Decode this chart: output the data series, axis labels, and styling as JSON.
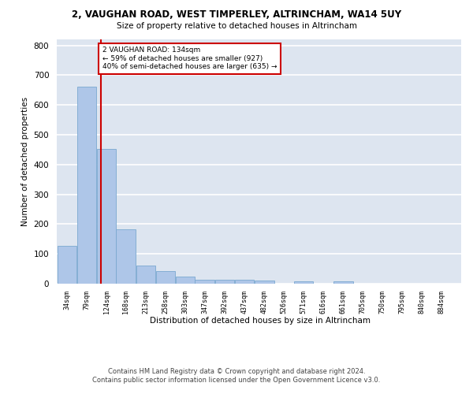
{
  "title_line1": "2, VAUGHAN ROAD, WEST TIMPERLEY, ALTRINCHAM, WA14 5UY",
  "title_line2": "Size of property relative to detached houses in Altrincham",
  "xlabel": "Distribution of detached houses by size in Altrincham",
  "ylabel": "Number of detached properties",
  "footnote": "Contains HM Land Registry data © Crown copyright and database right 2024.\nContains public sector information licensed under the Open Government Licence v3.0.",
  "bar_color": "#aec6e8",
  "bar_edge_color": "#7aa8d0",
  "background_color": "#dde5f0",
  "grid_color": "#ffffff",
  "annotation_box_color": "#cc0000",
  "annotation_text": "2 VAUGHAN ROAD: 134sqm\n← 59% of detached houses are smaller (927)\n40% of semi-detached houses are larger (635) →",
  "vline_color": "#cc0000",
  "vline_x": 134,
  "bins": [
    34,
    79,
    124,
    168,
    213,
    258,
    303,
    347,
    392,
    437,
    482,
    526,
    571,
    616,
    661,
    705,
    750,
    795,
    840,
    884,
    929
  ],
  "counts": [
    128,
    660,
    452,
    183,
    60,
    43,
    25,
    12,
    13,
    12,
    10,
    0,
    8,
    0,
    8,
    0,
    0,
    0,
    0,
    0
  ],
  "ylim": [
    0,
    820
  ],
  "yticks": [
    0,
    100,
    200,
    300,
    400,
    500,
    600,
    700,
    800
  ]
}
